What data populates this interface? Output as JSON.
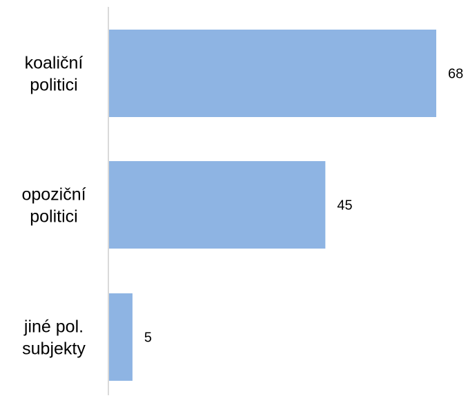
{
  "chart_data": {
    "type": "bar",
    "orientation": "horizontal",
    "categories": [
      "koaliční politici",
      "opoziční politici",
      "jiné pol. subjekty"
    ],
    "category_lines": [
      [
        "koaliční",
        "politici"
      ],
      [
        "opoziční",
        "politici"
      ],
      [
        "jiné pol.",
        "subjekty"
      ]
    ],
    "values": [
      68,
      45,
      5
    ],
    "title": "",
    "xlabel": "",
    "ylabel": "",
    "xlim": [
      0,
      68
    ],
    "grid": false,
    "legend": "none",
    "bar_color": "#8EB4E3",
    "axis_color": "#D9D9D9"
  }
}
